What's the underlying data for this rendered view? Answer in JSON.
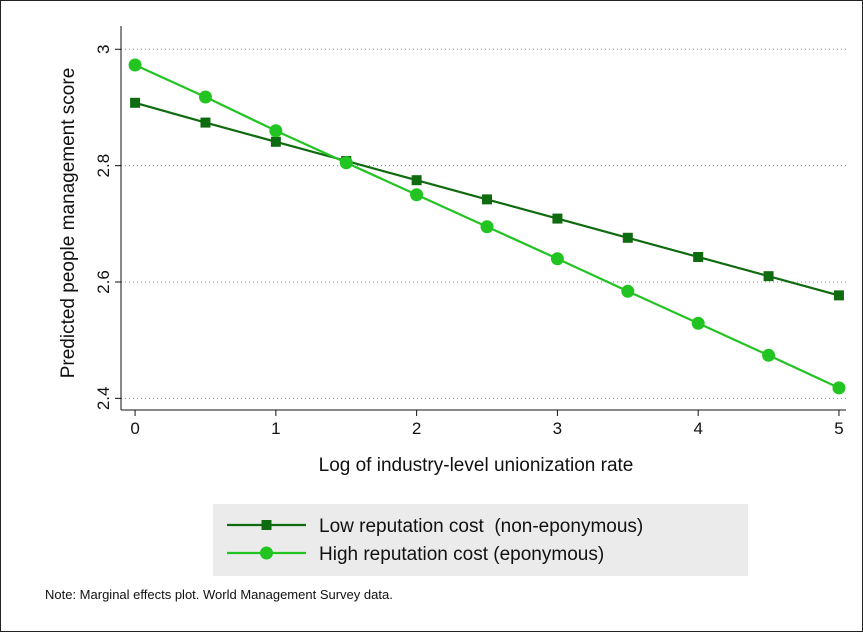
{
  "chart_data": {
    "type": "line",
    "xlabel": "Log of industry-level unionization rate",
    "ylabel": "Predicted people management score",
    "xlim": [
      -0.1,
      5.05
    ],
    "ylim": [
      2.38,
      3.04
    ],
    "x_ticks": [
      0,
      1,
      2,
      3,
      4,
      5
    ],
    "x_tick_labels": [
      "0",
      "1",
      "2",
      "3",
      "4",
      "5"
    ],
    "y_ticks": [
      2.4,
      2.6,
      2.8,
      3.0
    ],
    "y_tick_labels": [
      "2.4",
      "2.6",
      "2.8",
      "3"
    ],
    "grid": "horizontal dotted",
    "legend_position": "bottom",
    "x": [
      0,
      0.5,
      1,
      1.5,
      2,
      2.5,
      3,
      3.5,
      4,
      4.5,
      5
    ],
    "series": [
      {
        "name": "Low reputation cost  (non-eponymous)",
        "color": "#0f6b0f",
        "marker": "square",
        "values": [
          2.908,
          2.874,
          2.841,
          2.808,
          2.775,
          2.742,
          2.709,
          2.676,
          2.643,
          2.61,
          2.577
        ]
      },
      {
        "name": "High reputation cost (eponymous)",
        "color": "#22c422",
        "marker": "circle",
        "values": [
          2.973,
          2.918,
          2.86,
          2.805,
          2.75,
          2.695,
          2.64,
          2.584,
          2.529,
          2.474,
          2.418
        ]
      }
    ]
  },
  "note": "Note: Marginal effects plot. World Management Survey data."
}
